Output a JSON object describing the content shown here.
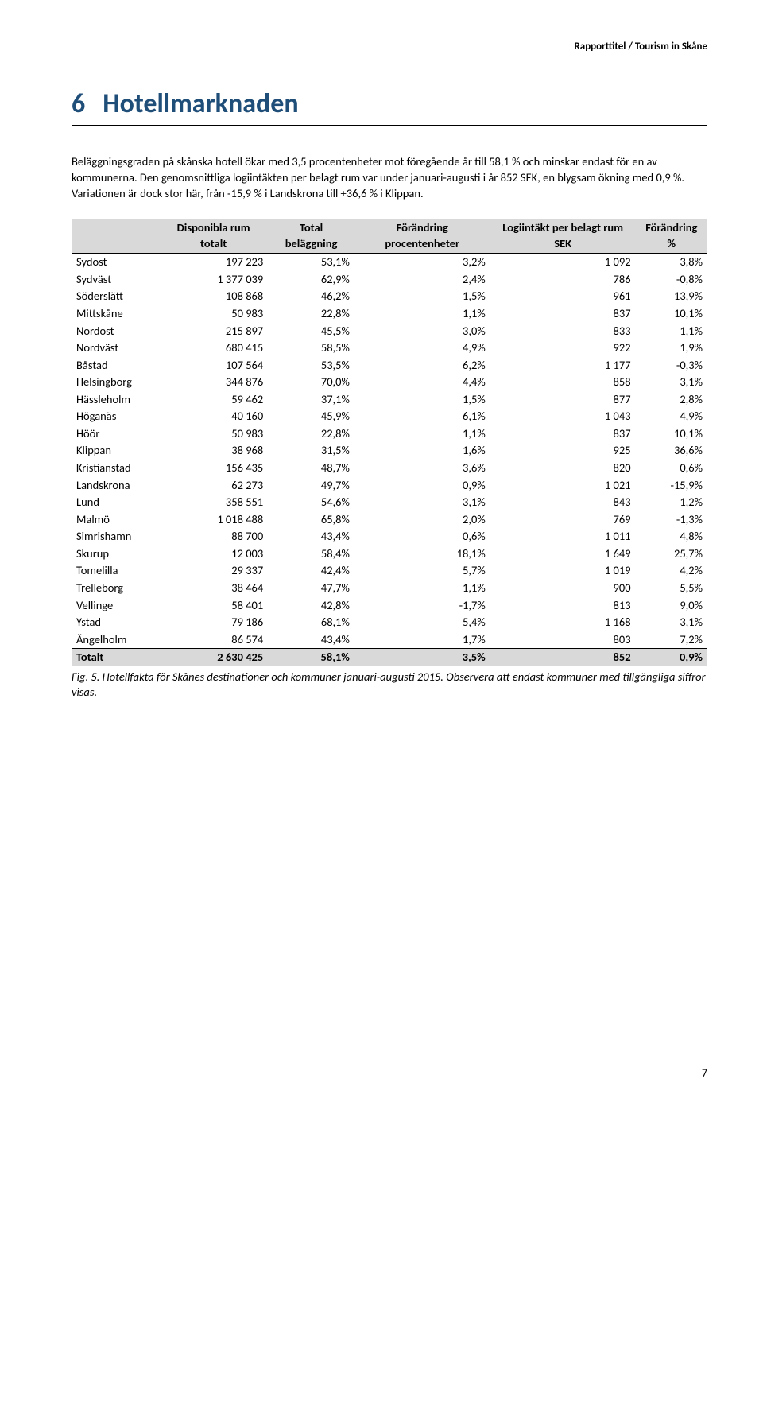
{
  "header": {
    "right": "Rapporttitel / Tourism in Skåne"
  },
  "heading": {
    "number": "6",
    "title": "Hotellmarknaden"
  },
  "paragraphs": {
    "p1": "Beläggningsgraden på skånska hotell ökar med 3,5 procentenheter mot föregående år till 58,1 % och minskar endast för en av kommunerna. Den genomsnittliga logiintäkten per belagt rum var under januari-augusti i år 852 SEK, en blygsam ökning med 0,9 %. Variationen är dock stor här, från -15,9 % i Landskrona till +36,6 % i Klippan."
  },
  "table": {
    "headers": {
      "c0": "",
      "c1": "Disponibla rum totalt",
      "c2": "Total beläggning",
      "c3": "Förändring procentenheter",
      "c4": "Logiintäkt per belagt rum SEK",
      "c5": "Förändring %"
    },
    "rows": [
      {
        "name": "Sydost",
        "c1": "197 223",
        "c2": "53,1%",
        "c3": "3,2%",
        "c4": "1 092",
        "c5": "3,8%"
      },
      {
        "name": "Sydväst",
        "c1": "1 377 039",
        "c2": "62,9%",
        "c3": "2,4%",
        "c4": "786",
        "c5": "-0,8%"
      },
      {
        "name": "Söderslätt",
        "c1": "108 868",
        "c2": "46,2%",
        "c3": "1,5%",
        "c4": "961",
        "c5": "13,9%"
      },
      {
        "name": "Mittskåne",
        "c1": "50 983",
        "c2": "22,8%",
        "c3": "1,1%",
        "c4": "837",
        "c5": "10,1%"
      },
      {
        "name": "Nordost",
        "c1": "215 897",
        "c2": "45,5%",
        "c3": "3,0%",
        "c4": "833",
        "c5": "1,1%"
      },
      {
        "name": "Nordväst",
        "c1": "680 415",
        "c2": "58,5%",
        "c3": "4,9%",
        "c4": "922",
        "c5": "1,9%"
      },
      {
        "name": "Båstad",
        "c1": "107 564",
        "c2": "53,5%",
        "c3": "6,2%",
        "c4": "1 177",
        "c5": "-0,3%"
      },
      {
        "name": "Helsingborg",
        "c1": "344 876",
        "c2": "70,0%",
        "c3": "4,4%",
        "c4": "858",
        "c5": "3,1%"
      },
      {
        "name": "Hässleholm",
        "c1": "59 462",
        "c2": "37,1%",
        "c3": "1,5%",
        "c4": "877",
        "c5": "2,8%"
      },
      {
        "name": "Höganäs",
        "c1": "40 160",
        "c2": "45,9%",
        "c3": "6,1%",
        "c4": "1 043",
        "c5": "4,9%"
      },
      {
        "name": "Höör",
        "c1": "50 983",
        "c2": "22,8%",
        "c3": "1,1%",
        "c4": "837",
        "c5": "10,1%"
      },
      {
        "name": "Klippan",
        "c1": "38 968",
        "c2": "31,5%",
        "c3": "1,6%",
        "c4": "925",
        "c5": "36,6%"
      },
      {
        "name": "Kristianstad",
        "c1": "156 435",
        "c2": "48,7%",
        "c3": "3,6%",
        "c4": "820",
        "c5": "0,6%"
      },
      {
        "name": "Landskrona",
        "c1": "62 273",
        "c2": "49,7%",
        "c3": "0,9%",
        "c4": "1 021",
        "c5": "-15,9%"
      },
      {
        "name": "Lund",
        "c1": "358 551",
        "c2": "54,6%",
        "c3": "3,1%",
        "c4": "843",
        "c5": "1,2%"
      },
      {
        "name": "Malmö",
        "c1": "1 018 488",
        "c2": "65,8%",
        "c3": "2,0%",
        "c4": "769",
        "c5": "-1,3%"
      },
      {
        "name": "Simrishamn",
        "c1": "88 700",
        "c2": "43,4%",
        "c3": "0,6%",
        "c4": "1 011",
        "c5": "4,8%"
      },
      {
        "name": "Skurup",
        "c1": "12 003",
        "c2": "58,4%",
        "c3": "18,1%",
        "c4": "1 649",
        "c5": "25,7%"
      },
      {
        "name": "Tomelilla",
        "c1": "29 337",
        "c2": "42,4%",
        "c3": "5,7%",
        "c4": "1 019",
        "c5": "4,2%"
      },
      {
        "name": "Trelleborg",
        "c1": "38 464",
        "c2": "47,7%",
        "c3": "1,1%",
        "c4": "900",
        "c5": "5,5%"
      },
      {
        "name": "Vellinge",
        "c1": "58 401",
        "c2": "42,8%",
        "c3": "-1,7%",
        "c4": "813",
        "c5": "9,0%"
      },
      {
        "name": "Ystad",
        "c1": "79 186",
        "c2": "68,1%",
        "c3": "5,4%",
        "c4": "1 168",
        "c5": "3,1%"
      },
      {
        "name": "Ängelholm",
        "c1": "86 574",
        "c2": "43,4%",
        "c3": "1,7%",
        "c4": "803",
        "c5": "7,2%"
      }
    ],
    "total": {
      "name": "Totalt",
      "c1": "2 630 425",
      "c2": "58,1%",
      "c3": "3,5%",
      "c4": "852",
      "c5": "0,9%"
    }
  },
  "caption": "Fig. 5. Hotellfakta för Skånes destinationer och kommuner januari-augusti 2015. Observera att endast kommuner med tillgängliga siffror visas.",
  "footer": {
    "page": "7"
  },
  "colors": {
    "heading": "#1f4e79",
    "header_bg": "#d9d9d9",
    "text": "#000000",
    "background": "#ffffff"
  },
  "column_widths_pct": [
    14,
    19,
    15,
    20,
    17,
    15
  ]
}
